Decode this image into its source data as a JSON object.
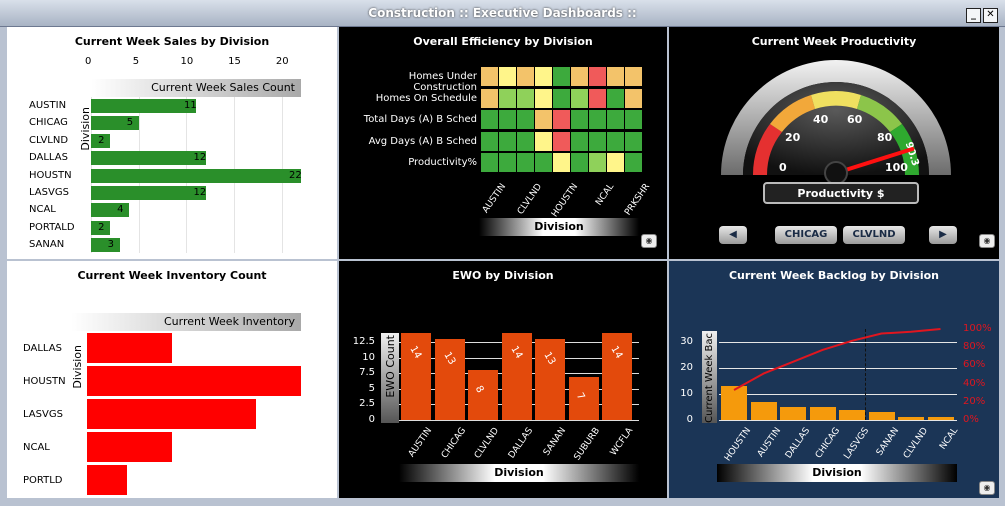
{
  "window": {
    "title": "Construction :: Executive Dashboards ::",
    "minimize_icon": "minimize-icon",
    "close_icon": "close-icon"
  },
  "sales": {
    "title": "Current Week Sales by Division",
    "header": "Current Week Sales Count",
    "ylabel": "Division",
    "ticks": [
      "0",
      "5",
      "10",
      "15",
      "20"
    ],
    "chart_data": {
      "type": "bar",
      "categories": [
        "AUSTIN",
        "CHICAG",
        "CLVLND",
        "DALLAS",
        "HOUSTN",
        "LASVGS",
        "NCAL",
        "PORTALD",
        "SANAN"
      ],
      "values": [
        11,
        5,
        2,
        12,
        22,
        12,
        4,
        2,
        3
      ],
      "labels": [
        "11",
        "5",
        "2",
        "12",
        "22",
        "12",
        "4",
        "2",
        "3"
      ],
      "xlim": [
        0,
        22
      ],
      "color": "#2a8f2a"
    }
  },
  "efficiency": {
    "title": "Overall Efficiency by Division",
    "rows": [
      "Homes Under Construction",
      "Homes On Schedule",
      "Total Days (A) B Sched",
      "Avg Days (A) B Sched",
      "Productivity%"
    ],
    "cols": [
      "AUSTIN",
      "CLVLND",
      "HOUSTN",
      "NCAL",
      "PRKSHR"
    ],
    "xlabel": "Division",
    "colors": {
      "y": "#fff58a",
      "o": "#f3c36a",
      "g": "#3daa3d",
      "l": "#8fd15a",
      "r": "#f05a5a"
    },
    "grid": [
      [
        "o",
        "y",
        "o",
        "y",
        "g",
        "o",
        "r",
        "o",
        "o"
      ],
      [
        "o",
        "l",
        "l",
        "y",
        "g",
        "l",
        "r",
        "g",
        "o"
      ],
      [
        "g",
        "g",
        "g",
        "o",
        "r",
        "g",
        "g",
        "g",
        "g"
      ],
      [
        "g",
        "g",
        "g",
        "y",
        "r",
        "g",
        "g",
        "g",
        "g"
      ],
      [
        "g",
        "g",
        "g",
        "g",
        "y",
        "g",
        "l",
        "y",
        "g"
      ]
    ]
  },
  "productivity": {
    "title": "Current Week Productivity",
    "gauge_label": "Productivity $",
    "value_text": "90.3",
    "value": 90.3,
    "ticks": [
      "0",
      "20",
      "40",
      "60",
      "80",
      "100"
    ],
    "prev_label": "◀",
    "next_label": "▶",
    "btn1": "CHICAG",
    "btn2": "CLVLND"
  },
  "inventory": {
    "title": "Current Week Inventory Count",
    "header": "Current Week Inventory",
    "ylabel": "Division",
    "chart_data": {
      "type": "bar",
      "categories": [
        "DALLAS",
        "HOUSTN",
        "LASVGS",
        "NCAL",
        "PORTLD"
      ],
      "values": [
        8.5,
        21.5,
        17,
        8.5,
        4
      ],
      "color": "#ff0000"
    }
  },
  "ewo": {
    "title": "EWO by Division",
    "ylabel": "EWO Count",
    "xlabel": "Division",
    "ticks": [
      "12.5",
      "10",
      "7.5",
      "5",
      "2.5",
      "0"
    ],
    "chart_data": {
      "type": "bar",
      "categories": [
        "AUSTIN",
        "CHICAG",
        "CLVLND",
        "DALLAS",
        "SANAN",
        "SUBURB",
        "WCFLA"
      ],
      "values": [
        14,
        13,
        8,
        14,
        13,
        7,
        14
      ],
      "labels": [
        "14",
        "13",
        "8",
        "14",
        "13",
        "7",
        "14"
      ],
      "ylim": [
        0,
        14
      ],
      "color": "#e34a0c"
    }
  },
  "backlog": {
    "title": "Current Week Backlog by Division",
    "ylabel": "Current Week Bac",
    "xlabel": "Division",
    "ticks_left": [
      "30",
      "20",
      "10",
      "0"
    ],
    "ticks_right": [
      "100%",
      "80%",
      "60%",
      "40%",
      "20%",
      "0%"
    ],
    "chart_data": {
      "type": "bar",
      "categories": [
        "HOUSTN",
        "AUSTIN",
        "DALLAS",
        "CHICAG",
        "LASVGS",
        "SANAN",
        "CLVLND",
        "NCAL"
      ],
      "values": [
        13,
        7,
        5,
        5,
        4,
        3,
        1,
        1
      ],
      "cumulative_pct": [
        33,
        51,
        64,
        77,
        87,
        95,
        97,
        100
      ],
      "ylim": [
        0,
        35
      ],
      "bar_color": "#f59a0c",
      "line_color": "#e0161f"
    }
  }
}
